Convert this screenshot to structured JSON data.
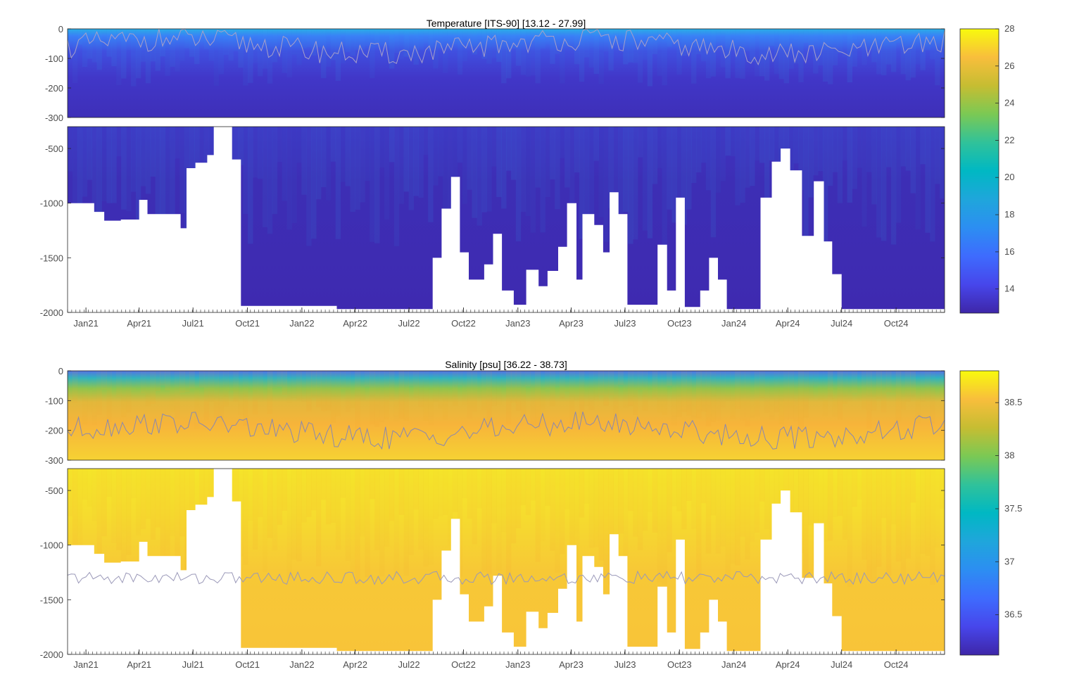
{
  "chart_data": [
    {
      "type": "heatmap",
      "title": "Temperature [ITS-90]   [13.12 - 27.99]",
      "variable": "Temperature",
      "units": "ITS-90",
      "range": [
        13.12,
        27.99
      ],
      "colormap": "parula",
      "x_tick_labels": [
        "Jan21",
        "Apr21",
        "Jul21",
        "Oct21",
        "Jan22",
        "Apr22",
        "Jul22",
        "Oct22",
        "Jan23",
        "Apr23",
        "Jul23",
        "Oct23",
        "Jan24",
        "Apr24",
        "Jul24",
        "Oct24"
      ],
      "upper_panel": {
        "ylim": [
          -300,
          0
        ],
        "y_ticks": [
          0,
          -100,
          -200,
          -300
        ],
        "y_tick_labels": [
          "0",
          "-100",
          "-200",
          "-300"
        ]
      },
      "lower_panel": {
        "ylim": [
          -2000,
          -300
        ],
        "y_ticks": [
          -500,
          -1000,
          -1500,
          -2000
        ],
        "y_tick_labels": [
          "-500",
          "-1000",
          "-1500",
          "-2000"
        ]
      },
      "colorbar": {
        "min": 12.7,
        "max": 28,
        "ticks": [
          14,
          16,
          18,
          20,
          22,
          24,
          26,
          28
        ],
        "tick_labels": [
          "14",
          "16",
          "18",
          "20",
          "22",
          "24",
          "26",
          "28"
        ]
      },
      "grid": false
    },
    {
      "type": "heatmap",
      "title": "Salinity [psu]   [36.22 - 38.73]",
      "variable": "Salinity",
      "units": "psu",
      "range": [
        36.22,
        38.73
      ],
      "colormap": "parula",
      "x_tick_labels": [
        "Jan21",
        "Apr21",
        "Jul21",
        "Oct21",
        "Jan22",
        "Apr22",
        "Jul22",
        "Oct22",
        "Jan23",
        "Apr23",
        "Jul23",
        "Oct23",
        "Jan24",
        "Apr24",
        "Jul24",
        "Oct24"
      ],
      "upper_panel": {
        "ylim": [
          -300,
          0
        ],
        "y_ticks": [
          0,
          -100,
          -200,
          -300
        ],
        "y_tick_labels": [
          "0",
          "-100",
          "-200",
          "-300"
        ]
      },
      "lower_panel": {
        "ylim": [
          -2000,
          -300
        ],
        "y_ticks": [
          -500,
          -1000,
          -1500,
          -2000
        ],
        "y_tick_labels": [
          "-500",
          "-1000",
          "-1500",
          "-2000"
        ]
      },
      "colorbar": {
        "min": 36.12,
        "max": 38.8,
        "ticks": [
          36.5,
          37,
          37.5,
          38,
          38.5
        ],
        "tick_labels": [
          "36.5",
          "37",
          "37.5",
          "38",
          "38.5"
        ]
      },
      "grid": false
    }
  ],
  "profile_max_depth": [
    {
      "date": "2020-12-01",
      "depth": -1000
    },
    {
      "date": "2021-01-15",
      "depth": -1080
    },
    {
      "date": "2021-02-01",
      "depth": -1160
    },
    {
      "date": "2021-03-01",
      "depth": -1150
    },
    {
      "date": "2021-04-01",
      "depth": -970
    },
    {
      "date": "2021-04-15",
      "depth": -1100
    },
    {
      "date": "2021-05-15",
      "depth": -1100
    },
    {
      "date": "2021-06-10",
      "depth": -1230
    },
    {
      "date": "2021-06-20",
      "depth": -680
    },
    {
      "date": "2021-07-05",
      "depth": -630
    },
    {
      "date": "2021-07-25",
      "depth": -560
    },
    {
      "date": "2021-08-05",
      "depth": -300
    },
    {
      "date": "2021-09-05",
      "depth": -600
    },
    {
      "date": "2021-09-20",
      "depth": -1940
    },
    {
      "date": "2022-03-01",
      "depth": -1970
    },
    {
      "date": "2022-06-15",
      "depth": -1970
    },
    {
      "date": "2022-08-10",
      "depth": -1500
    },
    {
      "date": "2022-08-25",
      "depth": -1050
    },
    {
      "date": "2022-09-10",
      "depth": -760
    },
    {
      "date": "2022-09-25",
      "depth": -1450
    },
    {
      "date": "2022-10-10",
      "depth": -1700
    },
    {
      "date": "2022-11-05",
      "depth": -1560
    },
    {
      "date": "2022-11-20",
      "depth": -1280
    },
    {
      "date": "2022-12-05",
      "depth": -1800
    },
    {
      "date": "2022-12-25",
      "depth": -1930
    },
    {
      "date": "2023-01-15",
      "depth": -1610
    },
    {
      "date": "2023-02-05",
      "depth": -1760
    },
    {
      "date": "2023-02-20",
      "depth": -1620
    },
    {
      "date": "2023-03-10",
      "depth": -1400
    },
    {
      "date": "2023-03-25",
      "depth": -1000
    },
    {
      "date": "2023-04-10",
      "depth": -1700
    },
    {
      "date": "2023-04-20",
      "depth": -1100
    },
    {
      "date": "2023-05-10",
      "depth": -1200
    },
    {
      "date": "2023-05-25",
      "depth": -1450
    },
    {
      "date": "2023-06-05",
      "depth": -900
    },
    {
      "date": "2023-06-20",
      "depth": -1100
    },
    {
      "date": "2023-07-05",
      "depth": -1930
    },
    {
      "date": "2023-08-25",
      "depth": -1380
    },
    {
      "date": "2023-09-10",
      "depth": -1800
    },
    {
      "date": "2023-09-25",
      "depth": -950
    },
    {
      "date": "2023-10-10",
      "depth": -1950
    },
    {
      "date": "2023-11-05",
      "depth": -1800
    },
    {
      "date": "2023-11-20",
      "depth": -1500
    },
    {
      "date": "2023-12-05",
      "depth": -1700
    },
    {
      "date": "2023-12-20",
      "depth": -1970
    },
    {
      "date": "2024-02-15",
      "depth": -950
    },
    {
      "date": "2024-03-05",
      "depth": -620
    },
    {
      "date": "2024-03-20",
      "depth": -500
    },
    {
      "date": "2024-04-05",
      "depth": -700
    },
    {
      "date": "2024-04-25",
      "depth": -1300
    },
    {
      "date": "2024-05-15",
      "depth": -800
    },
    {
      "date": "2024-06-01",
      "depth": -1350
    },
    {
      "date": "2024-06-15",
      "depth": -1650
    },
    {
      "date": "2024-07-01",
      "depth": -1970
    },
    {
      "date": "2024-12-20",
      "depth": -1970
    }
  ]
}
